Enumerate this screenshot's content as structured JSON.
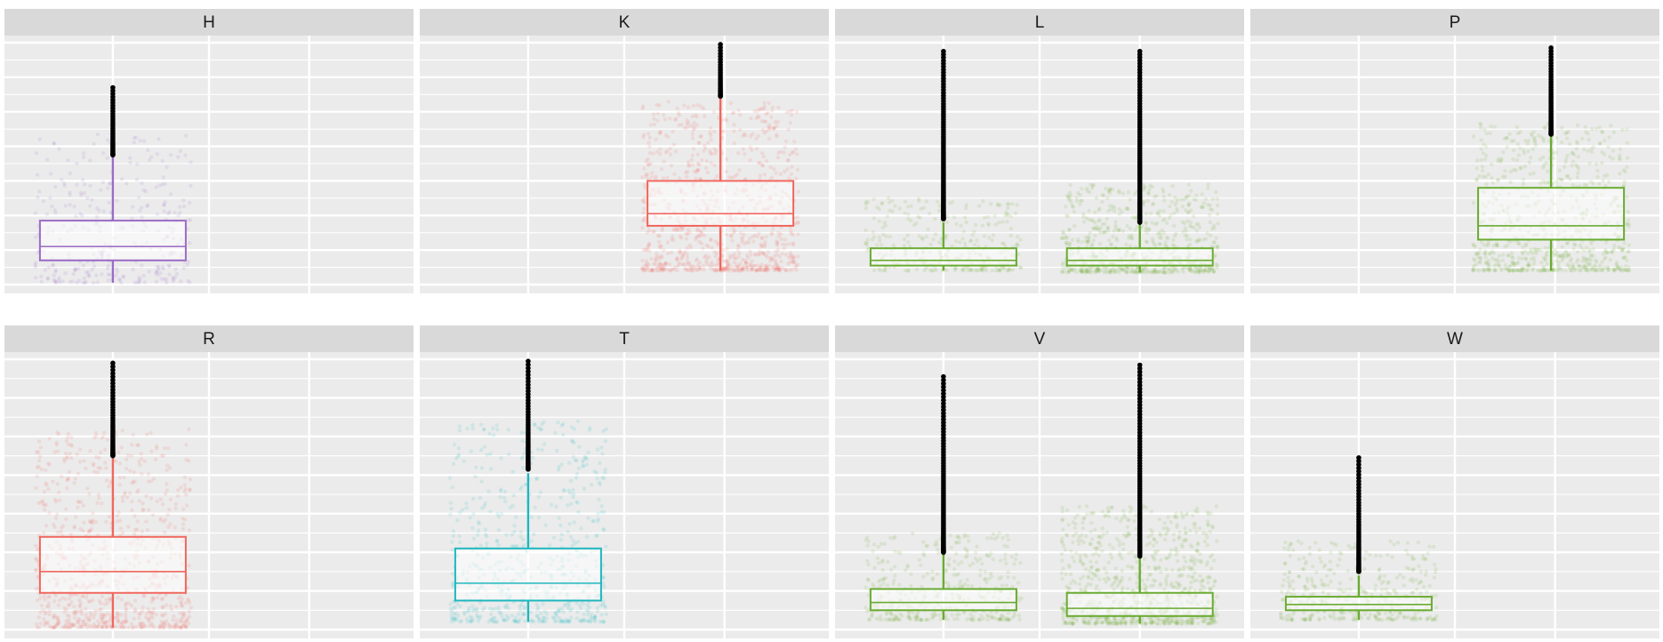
{
  "chart_data": {
    "type": "box",
    "title": "",
    "xlabel": "",
    "ylabel": "",
    "layout": {
      "rows": 2,
      "cols": 4
    },
    "ylim": [
      0,
      7
    ],
    "colors": {
      "purple": "#9b6bc6",
      "salmon": "#f0675d",
      "teal": "#1fb6bf",
      "green": "#6aab32",
      "panel_bg": "#ebebeb",
      "strip_bg": "#d9d9d9",
      "outlier": "#000000"
    },
    "panels": [
      {
        "label": "H",
        "boxes": [
          {
            "slot": 0,
            "color": "purple",
            "min": 0.05,
            "q1": 0.7,
            "median": 1.1,
            "q3": 1.85,
            "max": 3.7,
            "outliers_from": 3.75,
            "outliers_to": 5.7,
            "jitter_top": 4.4,
            "jitter_density": 0.35
          }
        ]
      },
      {
        "label": "K",
        "boxes": [
          {
            "slot": 3,
            "color": "salmon",
            "min": 0.4,
            "q1": 1.7,
            "median": 2.05,
            "q3": 3.0,
            "max": 5.4,
            "outliers_from": 5.45,
            "outliers_to": 6.95,
            "jitter_top": 5.3,
            "jitter_density": 1.0
          }
        ]
      },
      {
        "label": "L",
        "boxes": [
          {
            "slot": 0,
            "color": "green",
            "min": 0.4,
            "q1": 0.55,
            "median": 0.7,
            "q3": 1.05,
            "max": 1.8,
            "outliers_from": 1.9,
            "outliers_to": 6.75,
            "jitter_top": 2.5,
            "jitter_density": 0.35
          },
          {
            "slot": 2,
            "color": "green",
            "min": 0.35,
            "q1": 0.55,
            "median": 0.7,
            "q3": 1.05,
            "max": 1.75,
            "outliers_from": 1.8,
            "outliers_to": 6.75,
            "jitter_top": 2.9,
            "jitter_density": 0.75
          }
        ]
      },
      {
        "label": "P",
        "boxes": [
          {
            "slot": 3,
            "color": "green",
            "min": 0.4,
            "q1": 1.3,
            "median": 1.7,
            "q3": 2.8,
            "max": 4.3,
            "outliers_from": 4.35,
            "outliers_to": 6.85,
            "jitter_top": 4.7,
            "jitter_density": 0.85
          }
        ]
      },
      {
        "label": "R",
        "boxes": [
          {
            "slot": 0,
            "color": "salmon",
            "min": 0.05,
            "q1": 0.95,
            "median": 1.5,
            "q3": 2.4,
            "max": 4.45,
            "outliers_from": 4.5,
            "outliers_to": 6.9,
            "jitter_top": 5.2,
            "jitter_density": 0.9
          }
        ]
      },
      {
        "label": "T",
        "boxes": [
          {
            "slot": 0,
            "color": "teal",
            "min": 0.2,
            "q1": 0.75,
            "median": 1.2,
            "q3": 2.1,
            "max": 4.05,
            "outliers_from": 4.15,
            "outliers_to": 6.95,
            "jitter_top": 5.4,
            "jitter_density": 0.7
          }
        ]
      },
      {
        "label": "V",
        "boxes": [
          {
            "slot": 0,
            "color": "green",
            "min": 0.25,
            "q1": 0.5,
            "median": 0.7,
            "q3": 1.05,
            "max": 1.95,
            "outliers_from": 2.0,
            "outliers_to": 6.55,
            "jitter_top": 2.5,
            "jitter_density": 0.45
          },
          {
            "slot": 2,
            "color": "green",
            "min": 0.15,
            "q1": 0.35,
            "median": 0.55,
            "q3": 0.95,
            "max": 1.85,
            "outliers_from": 1.9,
            "outliers_to": 6.85,
            "jitter_top": 3.2,
            "jitter_density": 1.0
          }
        ]
      },
      {
        "label": "W",
        "boxes": [
          {
            "slot": 0,
            "color": "green",
            "min": 0.25,
            "q1": 0.5,
            "median": 0.65,
            "q3": 0.85,
            "max": 1.4,
            "outliers_from": 1.5,
            "outliers_to": 4.45,
            "jitter_top": 2.3,
            "jitter_density": 0.45
          }
        ]
      }
    ]
  }
}
